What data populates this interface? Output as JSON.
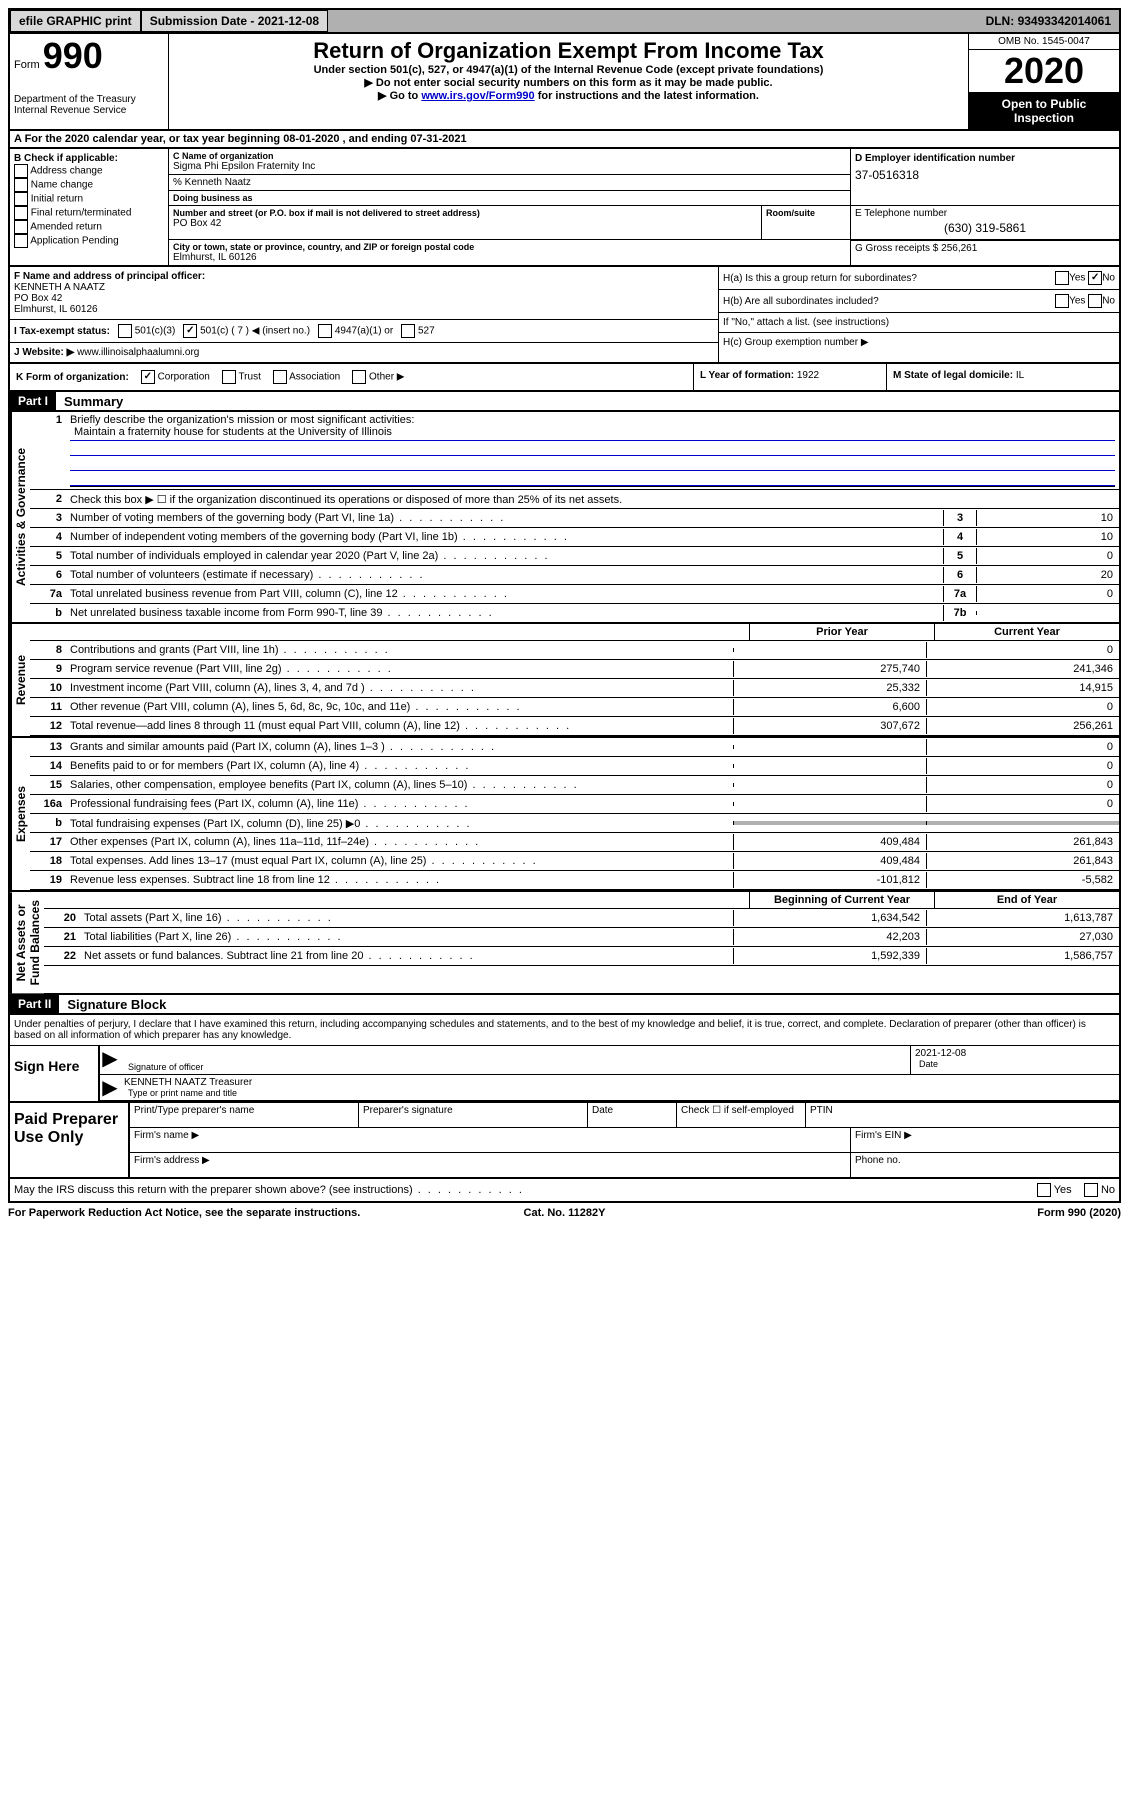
{
  "topbar": {
    "efile": "efile GRAPHIC print",
    "submission_label": "Submission Date - ",
    "submission_date": "2021-12-08",
    "dln_label": "DLN: ",
    "dln": "93493342014061"
  },
  "header": {
    "form_label": "Form",
    "form_num": "990",
    "dept": "Department of the Treasury\nInternal Revenue Service",
    "title": "Return of Organization Exempt From Income Tax",
    "sub1": "Under section 501(c), 527, or 4947(a)(1) of the Internal Revenue Code (except private foundations)",
    "sub2": "▶ Do not enter social security numbers on this form as it may be made public.",
    "sub3_pre": "▶ Go to ",
    "sub3_link": "www.irs.gov/Form990",
    "sub3_post": " for instructions and the latest information.",
    "omb": "OMB No. 1545-0047",
    "year": "2020",
    "open": "Open to Public Inspection"
  },
  "row_a": "A For the 2020 calendar year, or tax year beginning 08-01-2020    , and ending 07-31-2021",
  "col_b": {
    "label": "B Check if applicable:",
    "items": [
      "Address change",
      "Name change",
      "Initial return",
      "Final return/terminated",
      "Amended return",
      "Application Pending"
    ]
  },
  "col_c": {
    "name_label": "C Name of organization",
    "name": "Sigma Phi Epsilon Fraternity Inc",
    "care_of": "% Kenneth Naatz",
    "dba_label": "Doing business as",
    "addr_label": "Number and street (or P.O. box if mail is not delivered to street address)",
    "addr": "PO Box 42",
    "room_label": "Room/suite",
    "city_label": "City or town, state or province, country, and ZIP or foreign postal code",
    "city": "Elmhurst, IL  60126"
  },
  "col_d": {
    "label": "D Employer identification number",
    "ein": "37-0516318"
  },
  "col_e": {
    "label": "E Telephone number",
    "phone": "(630) 319-5861"
  },
  "col_g": {
    "label": "G Gross receipts $ ",
    "amount": "256,261"
  },
  "col_f": {
    "label": "F  Name and address of principal officer:",
    "name": "KENNETH A NAATZ",
    "addr1": "PO Box 42",
    "addr2": "Elmhurst, IL  60126"
  },
  "col_h": {
    "ha": "H(a)  Is this a group return for subordinates?",
    "hb": "H(b)  Are all subordinates included?",
    "hb_note": "If \"No,\" attach a list. (see instructions)",
    "hc": "H(c)  Group exemption number ▶",
    "ha_no_checked": true
  },
  "col_i": {
    "label": "I   Tax-exempt status:",
    "opts": [
      "501(c)(3)",
      "501(c) ( 7 ) ◀ (insert no.)",
      "4947(a)(1) or",
      "527"
    ],
    "checked_index": 1
  },
  "col_j": {
    "label": "J   Website: ▶  ",
    "url": "www.illinoisalphaalumni.org"
  },
  "col_k": {
    "label": "K Form of organization:",
    "opts": [
      "Corporation",
      "Trust",
      "Association",
      "Other ▶"
    ],
    "checked_index": 0
  },
  "col_l": {
    "label": "L Year of formation: ",
    "val": "1922"
  },
  "col_m": {
    "label": "M State of legal domicile: ",
    "val": "IL"
  },
  "part1": {
    "header": "Part I",
    "title": "Summary",
    "side_gov": "Activities & Governance",
    "side_rev": "Revenue",
    "side_exp": "Expenses",
    "side_net": "Net Assets or\nFund Balances",
    "line1_label": "Briefly describe the organization's mission or most significant activities:",
    "line1_val": "Maintain a fraternity house for students at the University of Illinois",
    "line2_label": "Check this box ▶ ☐  if the organization discontinued its operations or disposed of more than 25% of its net assets.",
    "lines_gov": [
      {
        "n": "3",
        "t": "Number of voting members of the governing body (Part VI, line 1a)",
        "box": "3",
        "v": "10"
      },
      {
        "n": "4",
        "t": "Number of independent voting members of the governing body (Part VI, line 1b)",
        "box": "4",
        "v": "10"
      },
      {
        "n": "5",
        "t": "Total number of individuals employed in calendar year 2020 (Part V, line 2a)",
        "box": "5",
        "v": "0"
      },
      {
        "n": "6",
        "t": "Total number of volunteers (estimate if necessary)",
        "box": "6",
        "v": "20"
      },
      {
        "n": "7a",
        "t": "Total unrelated business revenue from Part VIII, column (C), line 12",
        "box": "7a",
        "v": "0"
      },
      {
        "n": "b",
        "t": "Net unrelated business taxable income from Form 990-T, line 39",
        "box": "7b",
        "v": ""
      }
    ],
    "prior_label": "Prior Year",
    "curr_label": "Current Year",
    "lines_rev": [
      {
        "n": "8",
        "t": "Contributions and grants (Part VIII, line 1h)",
        "p": "",
        "c": "0"
      },
      {
        "n": "9",
        "t": "Program service revenue (Part VIII, line 2g)",
        "p": "275,740",
        "c": "241,346"
      },
      {
        "n": "10",
        "t": "Investment income (Part VIII, column (A), lines 3, 4, and 7d )",
        "p": "25,332",
        "c": "14,915"
      },
      {
        "n": "11",
        "t": "Other revenue (Part VIII, column (A), lines 5, 6d, 8c, 9c, 10c, and 11e)",
        "p": "6,600",
        "c": "0"
      },
      {
        "n": "12",
        "t": "Total revenue—add lines 8 through 11 (must equal Part VIII, column (A), line 12)",
        "p": "307,672",
        "c": "256,261"
      }
    ],
    "lines_exp": [
      {
        "n": "13",
        "t": "Grants and similar amounts paid (Part IX, column (A), lines 1–3 )",
        "p": "",
        "c": "0"
      },
      {
        "n": "14",
        "t": "Benefits paid to or for members (Part IX, column (A), line 4)",
        "p": "",
        "c": "0"
      },
      {
        "n": "15",
        "t": "Salaries, other compensation, employee benefits (Part IX, column (A), lines 5–10)",
        "p": "",
        "c": "0"
      },
      {
        "n": "16a",
        "t": "Professional fundraising fees (Part IX, column (A), line 11e)",
        "p": "",
        "c": "0"
      },
      {
        "n": "b",
        "t": "Total fundraising expenses (Part IX, column (D), line 25) ▶0",
        "p": "shaded",
        "c": "shaded"
      },
      {
        "n": "17",
        "t": "Other expenses (Part IX, column (A), lines 11a–11d, 11f–24e)",
        "p": "409,484",
        "c": "261,843"
      },
      {
        "n": "18",
        "t": "Total expenses. Add lines 13–17 (must equal Part IX, column (A), line 25)",
        "p": "409,484",
        "c": "261,843"
      },
      {
        "n": "19",
        "t": "Revenue less expenses. Subtract line 18 from line 12",
        "p": "-101,812",
        "c": "-5,582"
      }
    ],
    "begin_label": "Beginning of Current Year",
    "end_label": "End of Year",
    "lines_net": [
      {
        "n": "20",
        "t": "Total assets (Part X, line 16)",
        "p": "1,634,542",
        "c": "1,613,787"
      },
      {
        "n": "21",
        "t": "Total liabilities (Part X, line 26)",
        "p": "42,203",
        "c": "27,030"
      },
      {
        "n": "22",
        "t": "Net assets or fund balances. Subtract line 21 from line 20",
        "p": "1,592,339",
        "c": "1,586,757"
      }
    ]
  },
  "part2": {
    "header": "Part II",
    "title": "Signature Block",
    "perjury": "Under penalties of perjury, I declare that I have examined this return, including accompanying schedules and statements, and to the best of my knowledge and belief, it is true, correct, and complete. Declaration of preparer (other than officer) is based on all information of which preparer has any knowledge.",
    "sign_here": "Sign Here",
    "sig_officer_label": "Signature of officer",
    "date_label": "Date",
    "date_val": "2021-12-08",
    "officer_name": "KENNETH NAATZ Treasurer",
    "type_label": "Type or print name and title",
    "paid_label": "Paid Preparer Use Only",
    "prep_cols": [
      "Print/Type preparer's name",
      "Preparer's signature",
      "Date",
      "Check ☐ if self-employed",
      "PTIN"
    ],
    "firm_name": "Firm's name   ▶",
    "firm_ein": "Firm's EIN ▶",
    "firm_addr": "Firm's address ▶",
    "phone": "Phone no.",
    "discuss": "May the IRS discuss this return with the preparer shown above? (see instructions)"
  },
  "footer": {
    "left": "For Paperwork Reduction Act Notice, see the separate instructions.",
    "mid": "Cat. No. 11282Y",
    "right": "Form 990 (2020)"
  },
  "yes": "Yes",
  "no": "No"
}
